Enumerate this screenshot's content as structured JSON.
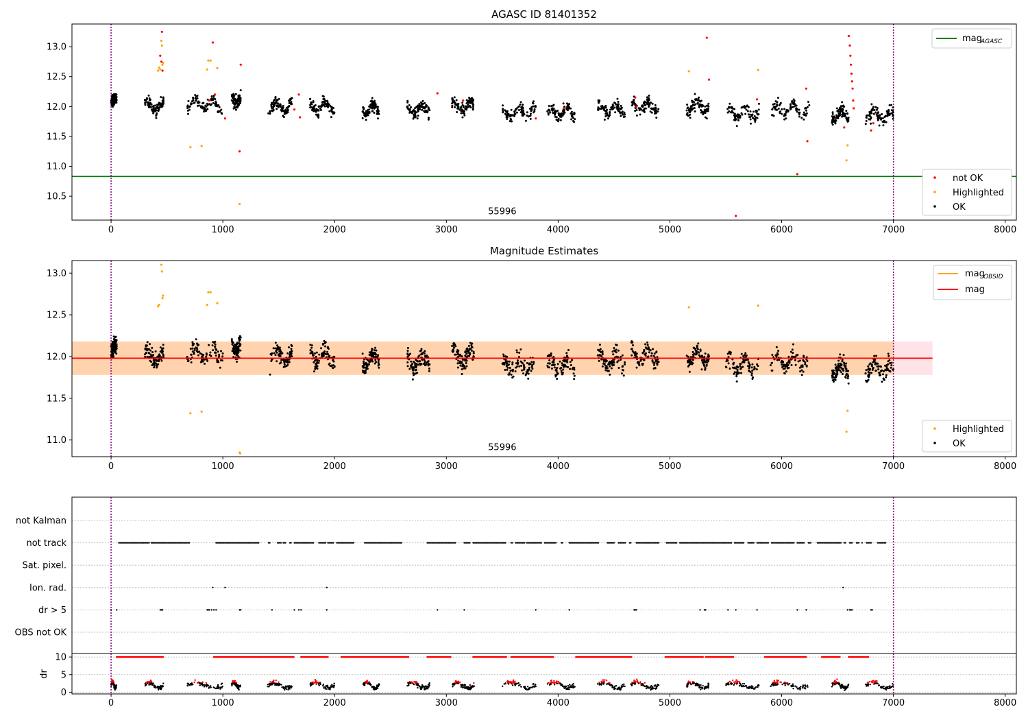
{
  "chart_data": [
    {
      "type": "scatter",
      "title": "AGASC ID 81401352",
      "xlim": [
        -350,
        8100
      ],
      "ylim": [
        10.1,
        13.38
      ],
      "xticks": [
        0,
        1000,
        2000,
        3000,
        4000,
        5000,
        6000,
        7000,
        8000
      ],
      "yticks": [
        10.5,
        11.0,
        11.5,
        12.0,
        12.5,
        13.0
      ],
      "vlines": [
        0,
        7000
      ],
      "hline": {
        "name": "mag",
        "subscript": "AGASC",
        "y": 10.83,
        "color": "#008000"
      },
      "annotation": {
        "text": "55996",
        "x": 3500,
        "y": 10.2
      },
      "clusters": [
        {
          "x0": 0,
          "x1": 50,
          "y": 12.05
        },
        {
          "x0": 300,
          "x1": 470,
          "y": 12.0
        },
        {
          "x0": 680,
          "x1": 1000,
          "y": 12.05
        },
        {
          "x0": 1080,
          "x1": 1160,
          "y": 12.15
        },
        {
          "x0": 1400,
          "x1": 1620,
          "y": 12.0
        },
        {
          "x0": 1780,
          "x1": 2000,
          "y": 12.0
        },
        {
          "x0": 2250,
          "x1": 2400,
          "y": 11.95
        },
        {
          "x0": 2650,
          "x1": 2850,
          "y": 11.95
        },
        {
          "x0": 3050,
          "x1": 3250,
          "y": 12.0
        },
        {
          "x0": 3500,
          "x1": 3800,
          "y": 11.9
        },
        {
          "x0": 3900,
          "x1": 4150,
          "y": 11.9
        },
        {
          "x0": 4350,
          "x1": 4600,
          "y": 11.95
        },
        {
          "x0": 4650,
          "x1": 4900,
          "y": 12.0
        },
        {
          "x0": 5150,
          "x1": 5350,
          "y": 12.0
        },
        {
          "x0": 5500,
          "x1": 5800,
          "y": 11.9
        },
        {
          "x0": 5900,
          "x1": 6250,
          "y": 11.95
        },
        {
          "x0": 6450,
          "x1": 6600,
          "y": 11.85
        },
        {
          "x0": 6750,
          "x1": 7000,
          "y": 11.85
        }
      ],
      "series": [
        {
          "name": "not OK",
          "color": "#ff0000",
          "points": [
            [
              440,
              12.85
            ],
            [
              450,
              12.75
            ],
            [
              455,
              13.25
            ],
            [
              460,
              12.6
            ],
            [
              880,
              12.1
            ],
            [
              910,
              13.07
            ],
            [
              930,
              12.2
            ],
            [
              1020,
              11.8
            ],
            [
              1150,
              11.25
            ],
            [
              1160,
              12.7
            ],
            [
              1640,
              11.95
            ],
            [
              1680,
              12.2
            ],
            [
              1690,
              11.82
            ],
            [
              2920,
              12.22
            ],
            [
              3150,
              12.1
            ],
            [
              3800,
              11.8
            ],
            [
              4050,
              11.97
            ],
            [
              4690,
              12.15
            ],
            [
              4700,
              12.0
            ],
            [
              5330,
              13.15
            ],
            [
              5350,
              12.45
            ],
            [
              5590,
              10.17
            ],
            [
              5780,
              12.12
            ],
            [
              6140,
              10.87
            ],
            [
              6220,
              12.3
            ],
            [
              6230,
              11.42
            ],
            [
              6560,
              11.65
            ],
            [
              6600,
              13.18
            ],
            [
              6610,
              13.02
            ],
            [
              6615,
              12.85
            ],
            [
              6620,
              12.7
            ],
            [
              6625,
              12.55
            ],
            [
              6630,
              12.42
            ],
            [
              6635,
              12.3
            ],
            [
              6640,
              12.1
            ],
            [
              6645,
              11.97
            ],
            [
              6800,
              11.6
            ],
            [
              6820,
              11.72
            ]
          ]
        },
        {
          "name": "Highlighted",
          "color": "#ffa500",
          "points": [
            [
              420,
              12.6
            ],
            [
              430,
              12.65
            ],
            [
              440,
              12.62
            ],
            [
              450,
              13.1
            ],
            [
              455,
              13.02
            ],
            [
              460,
              12.7
            ],
            [
              465,
              12.73
            ],
            [
              710,
              11.32
            ],
            [
              810,
              11.34
            ],
            [
              860,
              12.62
            ],
            [
              870,
              12.77
            ],
            [
              890,
              12.77
            ],
            [
              950,
              12.64
            ],
            [
              1150,
              10.37
            ],
            [
              5170,
              12.59
            ],
            [
              5790,
              12.61
            ],
            [
              6580,
              11.1
            ],
            [
              6590,
              11.35
            ]
          ]
        },
        {
          "name": "OK",
          "color": "#000000"
        }
      ]
    },
    {
      "type": "scatter",
      "title": "Magnitude Estimates",
      "xlim": [
        -350,
        8100
      ],
      "ylim": [
        10.8,
        13.15
      ],
      "xticks": [
        0,
        1000,
        2000,
        3000,
        4000,
        5000,
        6000,
        7000,
        8000
      ],
      "yticks": [
        11.0,
        11.5,
        12.0,
        12.5,
        13.0
      ],
      "vlines": [
        0,
        7000
      ],
      "mag": {
        "value": 11.98,
        "x0": -350,
        "x1": 7350,
        "color": "#ff0000",
        "band": [
          11.78,
          12.18
        ]
      },
      "mag_obsid": {
        "color": "#ffa500",
        "band": [
          11.78,
          12.18
        ]
      },
      "annotation": {
        "text": "55996",
        "x": 3500,
        "y": 10.88
      },
      "series": [
        {
          "name": "Highlighted",
          "color": "#ffa500",
          "points": [
            [
              420,
              12.6
            ],
            [
              430,
              12.62
            ],
            [
              450,
              13.1
            ],
            [
              455,
              13.02
            ],
            [
              460,
              12.7
            ],
            [
              465,
              12.73
            ],
            [
              710,
              11.32
            ],
            [
              810,
              11.34
            ],
            [
              860,
              12.62
            ],
            [
              870,
              12.77
            ],
            [
              890,
              12.77
            ],
            [
              950,
              12.64
            ],
            [
              1150,
              10.85
            ],
            [
              1155,
              10.84
            ],
            [
              5170,
              12.59
            ],
            [
              5790,
              12.61
            ],
            [
              6580,
              11.1
            ],
            [
              6590,
              11.35
            ]
          ]
        },
        {
          "name": "OK",
          "color": "#000000"
        }
      ],
      "legend": [
        {
          "name": "mag",
          "subscript": "OBSID",
          "color": "#ffa500"
        },
        {
          "name": "mag",
          "subscript": "",
          "color": "#ff0000"
        }
      ]
    },
    {
      "type": "scatter",
      "title": "",
      "xlim": [
        -350,
        8100
      ],
      "vlines": [
        0,
        7000
      ],
      "flag_labels": [
        "not Kalman",
        "not track",
        "Sat. pixel.",
        "Ion. rad.",
        "dr > 5",
        "OBS not OK"
      ],
      "flags": {
        "not track": [
          [
            70,
            340
          ],
          [
            360,
            700
          ],
          [
            940,
            1320
          ],
          [
            1410,
            1420
          ],
          [
            1490,
            1520
          ],
          [
            1540,
            1560
          ],
          [
            1600,
            1610
          ],
          [
            1640,
            1810
          ],
          [
            1860,
            1920
          ],
          [
            1940,
            1990
          ],
          [
            2020,
            2170
          ],
          [
            2270,
            2600
          ],
          [
            2830,
            3080
          ],
          [
            3160,
            3210
          ],
          [
            3240,
            3530
          ],
          [
            3580,
            3590
          ],
          [
            3620,
            3700
          ],
          [
            3720,
            3850
          ],
          [
            3880,
            3980
          ],
          [
            4030,
            4040
          ],
          [
            4100,
            4360
          ],
          [
            4440,
            4500
          ],
          [
            4540,
            4600
          ],
          [
            4640,
            4650
          ],
          [
            4700,
            4900
          ],
          [
            4970,
            5060
          ],
          [
            5090,
            5550
          ],
          [
            5580,
            5660
          ],
          [
            5700,
            5750
          ],
          [
            5780,
            5880
          ],
          [
            5910,
            5960
          ],
          [
            5970,
            6110
          ],
          [
            6140,
            6200
          ],
          [
            6240,
            6260
          ],
          [
            6320,
            6530
          ],
          [
            6560,
            6570
          ],
          [
            6610,
            6630
          ],
          [
            6670,
            6690
          ],
          [
            6720,
            6720
          ],
          [
            6760,
            6800
          ],
          [
            6860,
            6930
          ]
        ],
        "Ion. rad.": [
          910,
          1020,
          1930,
          6550
        ],
        "dr > 5": [
          0,
          50,
          440,
          450,
          460,
          860,
          870,
          880,
          900,
          920,
          940,
          1150,
          1160,
          1440,
          1640,
          1680,
          1700,
          1930,
          2920,
          3160,
          3800,
          4100,
          4680,
          4690,
          4700,
          5270,
          5310,
          5320,
          5520,
          5590,
          5780,
          6140,
          6220,
          6590,
          6610,
          6620,
          6630,
          6800,
          6810
        ]
      },
      "dr": {
        "ylabel": "dr",
        "yticks": [
          0,
          5,
          10
        ],
        "ylim": [
          -0.5,
          11
        ],
        "saturation": 10,
        "sat_ranges": [
          [
            50,
            470
          ],
          [
            920,
            1340
          ],
          [
            1330,
            1640
          ],
          [
            1700,
            1940
          ],
          [
            2060,
            2660
          ],
          [
            2830,
            3040
          ],
          [
            3240,
            3540
          ],
          [
            3580,
            3960
          ],
          [
            4160,
            4660
          ],
          [
            4960,
            5300
          ],
          [
            5320,
            5570
          ],
          [
            5850,
            6220
          ],
          [
            6360,
            6520
          ],
          [
            6600,
            6780
          ]
        ]
      }
    }
  ]
}
